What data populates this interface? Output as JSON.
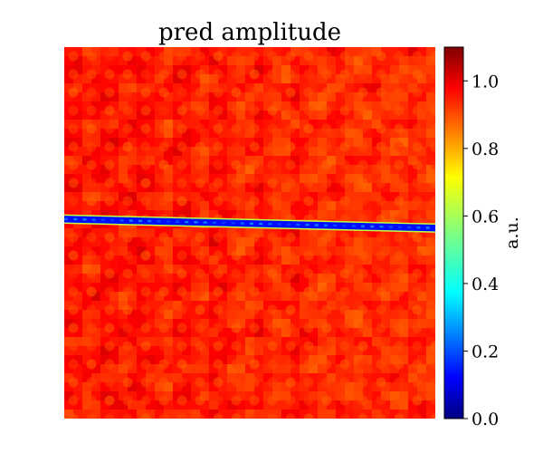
{
  "chart_data": {
    "type": "heatmap",
    "title": "pred amplitude",
    "description_of_field": "",
    "colorbar": {
      "label": "a.u.",
      "range": [
        0.0,
        1.1
      ],
      "ticks": [
        0.0,
        0.2,
        0.4,
        0.6,
        0.8,
        1.0
      ],
      "tick_labels": [
        "0.0",
        "0.2",
        "0.4",
        "0.6",
        "0.8",
        "1.0"
      ],
      "colormap": "jet"
    },
    "field": {
      "background_value": 0.93,
      "background_variation": 0.08,
      "stripe": {
        "value_center": 0.15,
        "value_edge": 0.55,
        "y_start_fraction": 0.463,
        "y_end_fraction": 0.487,
        "thickness_fraction": 0.018
      }
    },
    "axes_visible": false,
    "grid": false
  }
}
